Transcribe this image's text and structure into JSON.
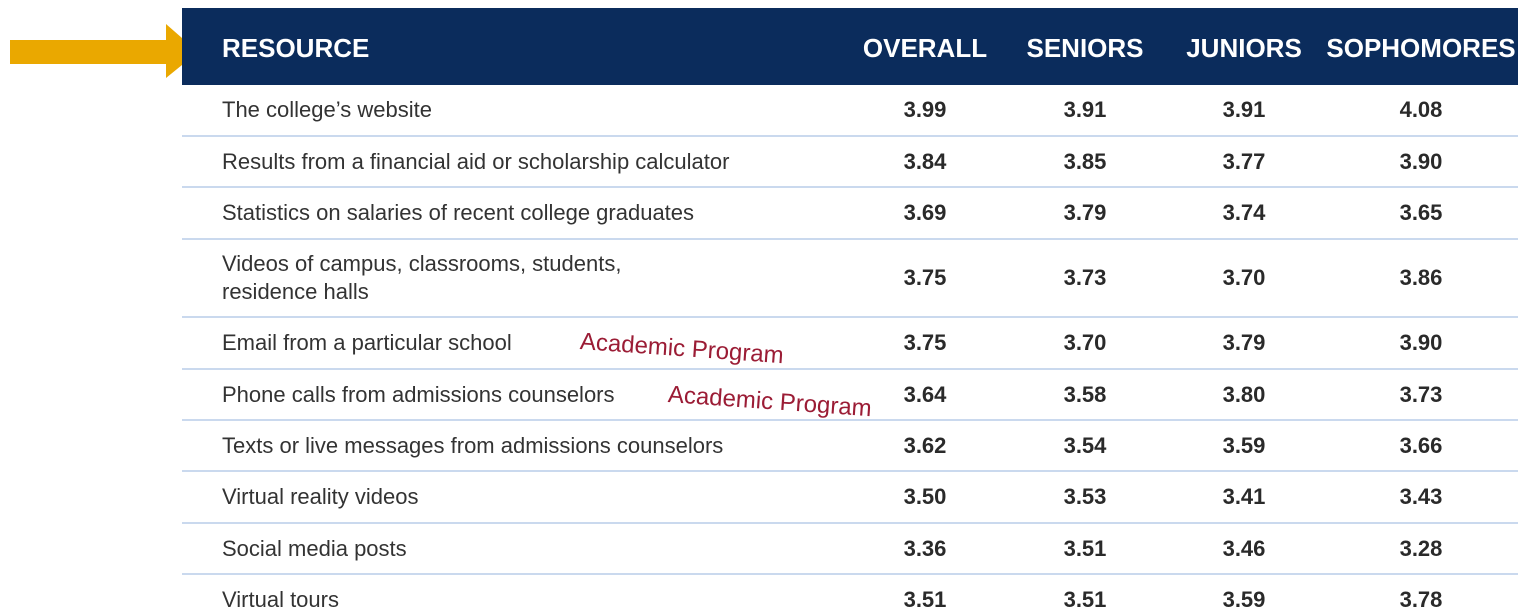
{
  "table": {
    "header": [
      "RESOURCE",
      "OVERALL",
      "SENIORS",
      "JUNIORS",
      "SOPHOMORES"
    ],
    "rows": [
      [
        "The college’s website",
        "3.99",
        "3.91",
        "3.91",
        "4.08"
      ],
      [
        "Results from a financial aid or scholarship calculator",
        "3.84",
        "3.85",
        "3.77",
        "3.90"
      ],
      [
        "Statistics on salaries of recent college graduates",
        "3.69",
        "3.79",
        "3.74",
        "3.65"
      ],
      [
        "Videos of campus, classrooms, students,\nresidence halls",
        "3.75",
        "3.73",
        "3.70",
        "3.86"
      ],
      [
        "Email from a particular school",
        "3.75",
        "3.70",
        "3.79",
        "3.90"
      ],
      [
        "Phone calls from admissions counselors",
        "3.64",
        "3.58",
        "3.80",
        "3.73"
      ],
      [
        "Texts or live messages from admissions counselors",
        "3.62",
        "3.54",
        "3.59",
        "3.66"
      ],
      [
        "Virtual reality videos",
        "3.50",
        "3.53",
        "3.41",
        "3.43"
      ],
      [
        "Social media posts",
        "3.36",
        "3.51",
        "3.46",
        "3.28"
      ],
      [
        "Virtual tours",
        "3.51",
        "3.51",
        "3.59",
        "3.78"
      ]
    ]
  },
  "annotations": [
    "Academic Program",
    "Academic Program"
  ]
}
